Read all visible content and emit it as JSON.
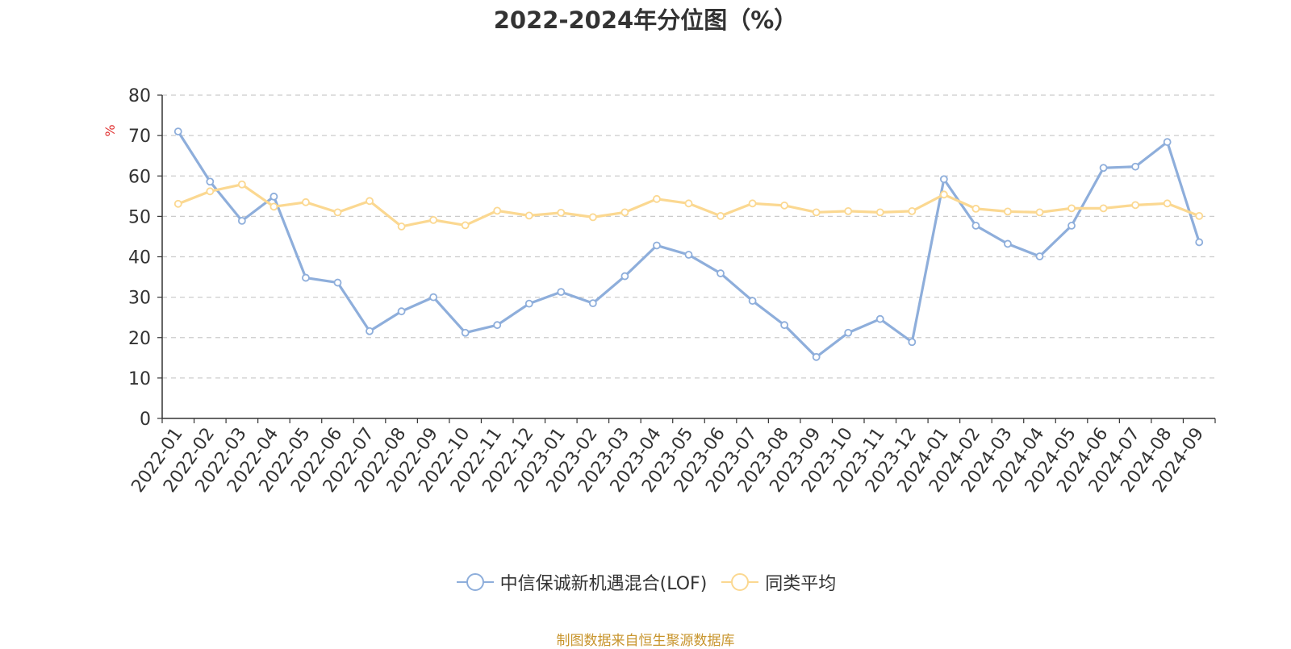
{
  "chart_data": {
    "type": "line",
    "title": "2022-2024年分位图（%）",
    "ylabel": "%",
    "ylim": [
      0,
      80
    ],
    "yticks": [
      0,
      10,
      20,
      30,
      40,
      50,
      60,
      70,
      80
    ],
    "grid": true,
    "legend_position": "bottom",
    "categories": [
      "2022-01",
      "2022-02",
      "2022-03",
      "2022-04",
      "2022-05",
      "2022-06",
      "2022-07",
      "2022-08",
      "2022-09",
      "2022-10",
      "2022-11",
      "2022-12",
      "2023-01",
      "2023-02",
      "2023-03",
      "2023-04",
      "2023-05",
      "2023-06",
      "2023-07",
      "2023-08",
      "2023-09",
      "2023-10",
      "2023-11",
      "2023-12",
      "2024-01",
      "2024-02",
      "2024-03",
      "2024-04",
      "2024-05",
      "2024-06",
      "2024-07",
      "2024-08",
      "2024-09"
    ],
    "series": [
      {
        "name": "中信保诚新机遇混合(LOF)",
        "color": "#8eaedb",
        "values": [
          71.0,
          58.6,
          48.9,
          54.9,
          34.8,
          33.6,
          21.6,
          26.5,
          30.0,
          21.2,
          23.1,
          28.4,
          31.3,
          28.5,
          35.2,
          42.8,
          40.5,
          35.9,
          29.1,
          23.1,
          15.2,
          21.2,
          24.6,
          18.9,
          59.2,
          47.7,
          43.2,
          40.1,
          47.7,
          62.0,
          62.3,
          68.4,
          43.6
        ]
      },
      {
        "name": "同类平均",
        "color": "#fbd891",
        "values": [
          53.1,
          56.2,
          57.9,
          52.4,
          53.5,
          51.0,
          53.8,
          47.5,
          49.1,
          47.8,
          51.4,
          50.2,
          50.9,
          49.8,
          51.0,
          54.3,
          53.2,
          50.1,
          53.2,
          52.7,
          51.0,
          51.3,
          51.0,
          51.3,
          55.4,
          51.9,
          51.2,
          51.0,
          52.0,
          52.0,
          52.8,
          53.2,
          50.1
        ]
      }
    ]
  },
  "source_text": "制图数据来自恒生聚源数据库"
}
